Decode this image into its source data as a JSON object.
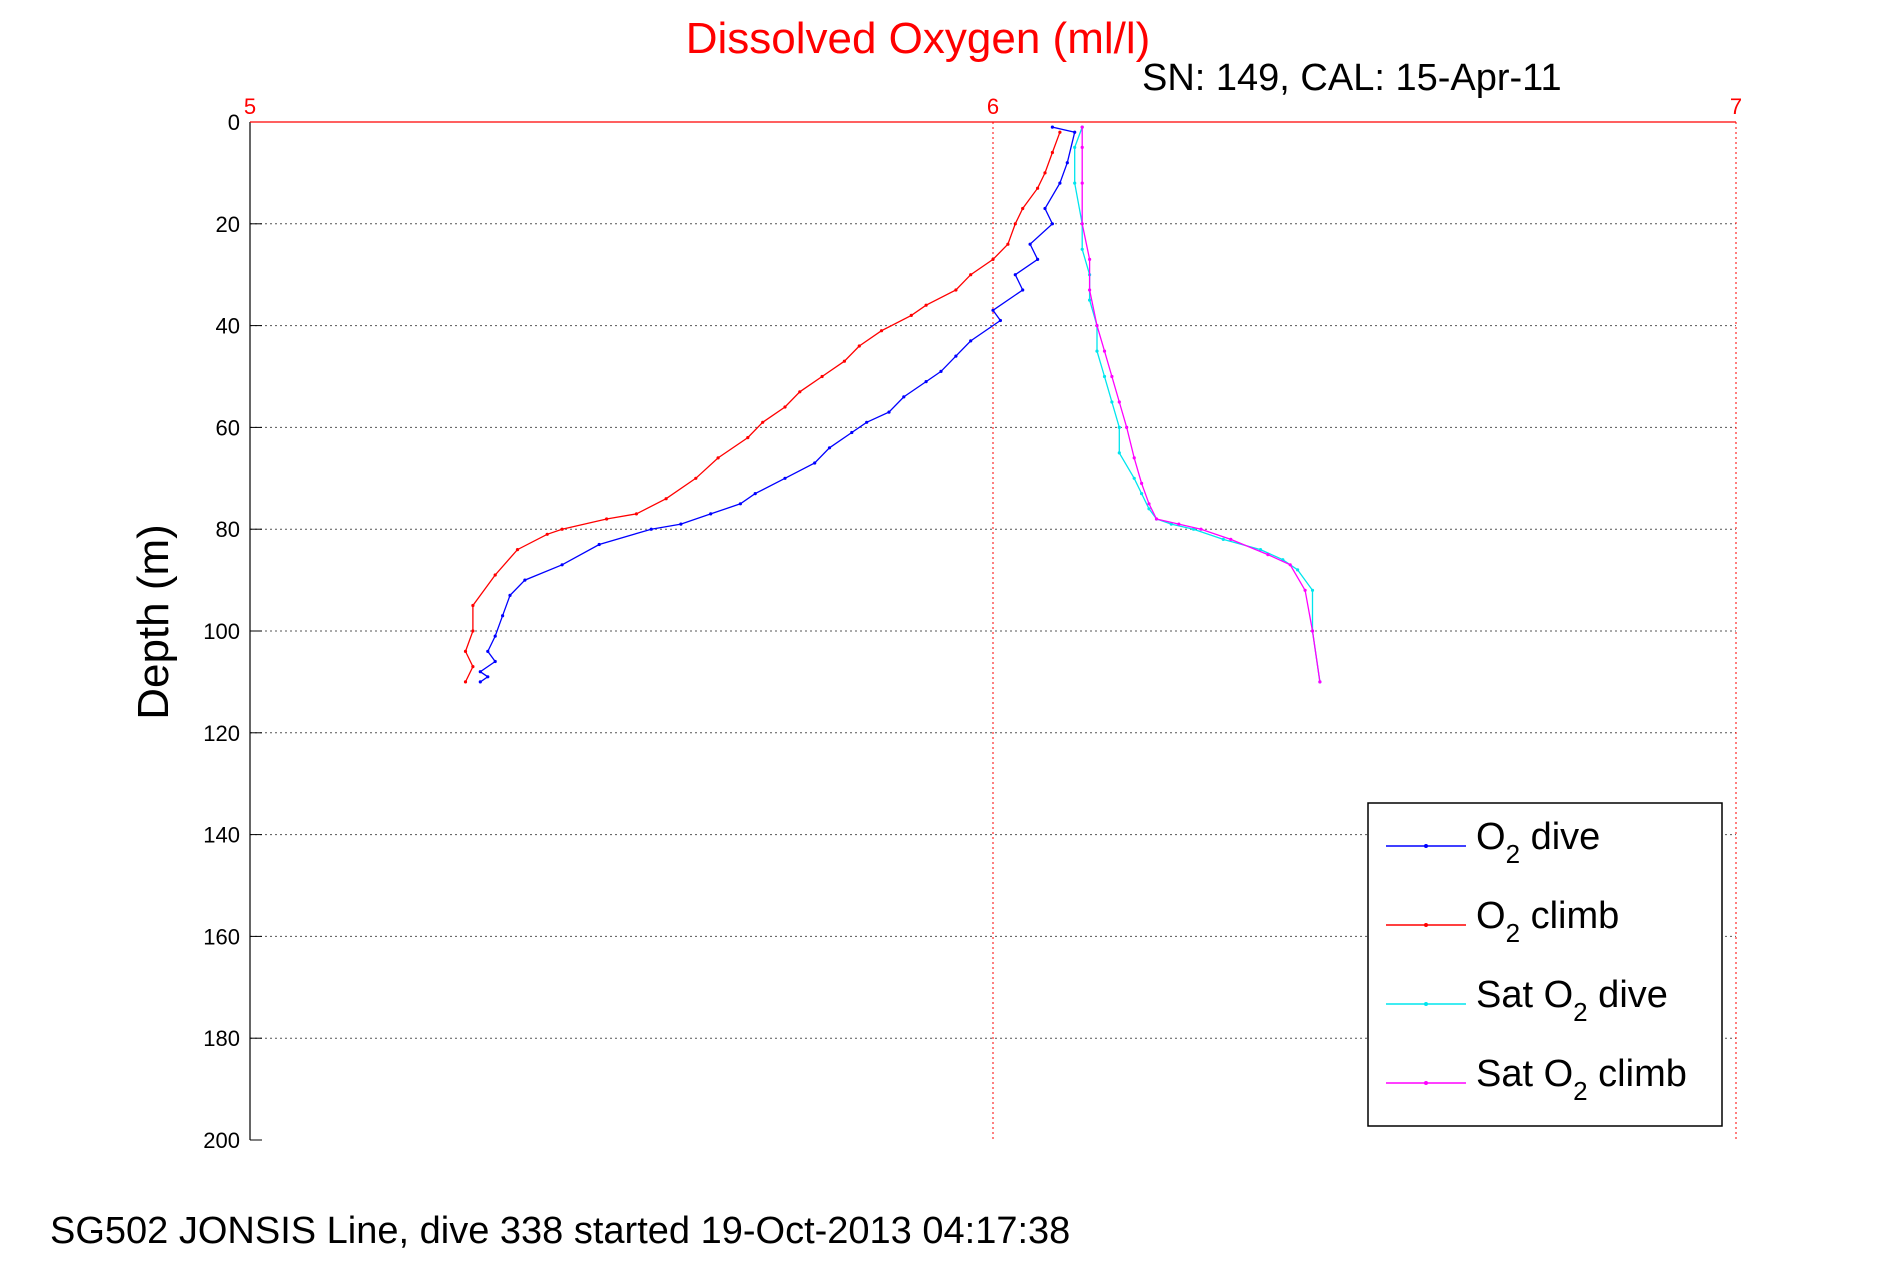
{
  "chart_data": {
    "type": "line",
    "title": "Dissolved Oxygen (ml/l)",
    "subtitle": "SN: 149, CAL: 15-Apr-11",
    "ylabel": "Depth (m)",
    "xlabel": "",
    "xlim": [
      5,
      7
    ],
    "ylim": [
      0,
      200
    ],
    "y_reversed": true,
    "x_axis_position": "top",
    "x_ticks": [
      "5",
      "6",
      "7"
    ],
    "y_ticks": [
      "0",
      "20",
      "40",
      "60",
      "80",
      "100",
      "120",
      "140",
      "160",
      "180",
      "200"
    ],
    "grid": true,
    "legend_position": "bottom-right",
    "series": [
      {
        "name": "O2 dive",
        "legend_main": "O",
        "legend_sub": "2",
        "legend_rest": " dive",
        "color": "#0000ff",
        "x": [
          6.08,
          6.11,
          6.1,
          6.09,
          6.07,
          6.08,
          6.05,
          6.06,
          6.03,
          6.04,
          6.0,
          6.01,
          5.97,
          5.95,
          5.93,
          5.91,
          5.88,
          5.86,
          5.83,
          5.81,
          5.78,
          5.76,
          5.72,
          5.68,
          5.66,
          5.62,
          5.58,
          5.54,
          5.47,
          5.42,
          5.37,
          5.35,
          5.34,
          5.33,
          5.32,
          5.33,
          5.31,
          5.32,
          5.31
        ],
        "y": [
          1,
          2,
          8,
          12,
          17,
          20,
          24,
          27,
          30,
          33,
          37,
          39,
          43,
          46,
          49,
          51,
          54,
          57,
          59,
          61,
          64,
          67,
          70,
          73,
          75,
          77,
          79,
          80,
          83,
          87,
          90,
          93,
          97,
          101,
          104,
          106,
          108,
          109,
          110
        ]
      },
      {
        "name": "O2 climb",
        "legend_main": "O",
        "legend_sub": "2",
        "legend_rest": " climb",
        "color": "#ff0000",
        "x": [
          6.09,
          6.08,
          6.07,
          6.06,
          6.04,
          6.03,
          6.02,
          6.0,
          5.97,
          5.95,
          5.91,
          5.89,
          5.85,
          5.82,
          5.8,
          5.77,
          5.74,
          5.72,
          5.69,
          5.67,
          5.63,
          5.6,
          5.56,
          5.52,
          5.48,
          5.42,
          5.4,
          5.36,
          5.33,
          5.3,
          5.3,
          5.29,
          5.3,
          5.29
        ],
        "y": [
          2,
          6,
          10,
          13,
          17,
          20,
          24,
          27,
          30,
          33,
          36,
          38,
          41,
          44,
          47,
          50,
          53,
          56,
          59,
          62,
          66,
          70,
          74,
          77,
          78,
          80,
          81,
          84,
          89,
          95,
          100,
          104,
          107,
          110
        ]
      },
      {
        "name": "Sat O2 dive",
        "legend_main": "Sat O",
        "legend_sub": "2",
        "legend_rest": " dive",
        "color": "#00e5ee",
        "x": [
          6.12,
          6.11,
          6.11,
          6.12,
          6.12,
          6.13,
          6.13,
          6.14,
          6.14,
          6.15,
          6.16,
          6.17,
          6.17,
          6.19,
          6.2,
          6.21,
          6.22,
          6.24,
          6.27,
          6.31,
          6.36,
          6.39,
          6.41,
          6.43,
          6.43,
          6.44
        ],
        "y": [
          1,
          5,
          12,
          20,
          25,
          30,
          35,
          40,
          45,
          50,
          55,
          60,
          65,
          70,
          73,
          76,
          78,
          79,
          80,
          82,
          84,
          86,
          88,
          92,
          100,
          110
        ]
      },
      {
        "name": "Sat O2 climb",
        "legend_main": "Sat O",
        "legend_sub": "2",
        "legend_rest": " climb",
        "color": "#ff00ff",
        "x": [
          6.12,
          6.12,
          6.12,
          6.12,
          6.13,
          6.13,
          6.14,
          6.15,
          6.16,
          6.17,
          6.18,
          6.19,
          6.2,
          6.21,
          6.22,
          6.25,
          6.28,
          6.32,
          6.37,
          6.4,
          6.42,
          6.43,
          6.44
        ],
        "y": [
          1,
          5,
          12,
          20,
          27,
          33,
          40,
          45,
          50,
          55,
          60,
          66,
          71,
          75,
          78,
          79,
          80,
          82,
          85,
          87,
          92,
          100,
          110
        ]
      }
    ]
  },
  "footer": "SG502 JONSIS Line, dive 338 started 19-Oct-2013 04:17:38"
}
